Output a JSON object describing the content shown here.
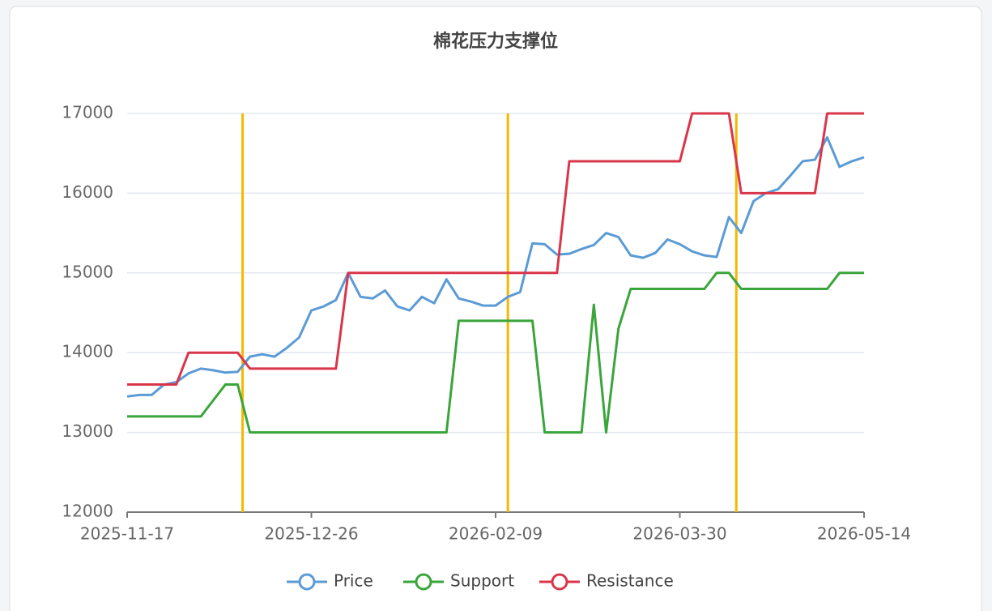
{
  "chart_data": {
    "type": "line",
    "title": "棉花压力支撑位",
    "categories": [
      "2025-11-17",
      null,
      null,
      null,
      null,
      null,
      null,
      null,
      null,
      null,
      null,
      null,
      null,
      null,
      null,
      "2025-12-26",
      null,
      null,
      null,
      null,
      null,
      null,
      null,
      null,
      null,
      null,
      null,
      null,
      null,
      null,
      "2026-02-09",
      null,
      null,
      null,
      null,
      null,
      null,
      null,
      null,
      null,
      null,
      null,
      null,
      null,
      null,
      "2026-03-30",
      null,
      null,
      null,
      null,
      null,
      null,
      null,
      null,
      null,
      null,
      null,
      null,
      null,
      null,
      "2026-05-14"
    ],
    "series": [
      {
        "name": "Price",
        "color": "#5b9bd5",
        "values": [
          13450,
          13470,
          13470,
          13600,
          13630,
          13740,
          13800,
          13780,
          13750,
          13760,
          13950,
          13980,
          13950,
          14060,
          14190,
          14530,
          14580,
          14660,
          15000,
          14700,
          14680,
          14780,
          14580,
          14530,
          14700,
          14620,
          14920,
          14680,
          14640,
          14590,
          14590,
          14700,
          14760,
          15370,
          15360,
          15230,
          15240,
          15300,
          15350,
          15500,
          15450,
          15220,
          15190,
          15250,
          15420,
          15360,
          15270,
          15220,
          15200,
          15700,
          15500,
          15900,
          16000,
          16050,
          16220,
          16400,
          16420,
          16700,
          16330,
          16400,
          16450
        ]
      },
      {
        "name": "Support",
        "color": "#3aa53a",
        "values": [
          13200,
          13200,
          13200,
          13200,
          13200,
          13200,
          13200,
          13400,
          13600,
          13600,
          13000,
          13000,
          13000,
          13000,
          13000,
          13000,
          13000,
          13000,
          13000,
          13000,
          13000,
          13000,
          13000,
          13000,
          13000,
          13000,
          13000,
          14400,
          14400,
          14400,
          14400,
          14400,
          14400,
          14400,
          13000,
          13000,
          13000,
          13000,
          14600,
          13000,
          14300,
          14800,
          14800,
          14800,
          14800,
          14800,
          14800,
          14800,
          15000,
          15000,
          14800,
          14800,
          14800,
          14800,
          14800,
          14800,
          14800,
          14800,
          15000,
          15000,
          15000
        ]
      },
      {
        "name": "Resistance",
        "color": "#d9364a",
        "values": [
          13600,
          13600,
          13600,
          13600,
          13600,
          14000,
          14000,
          14000,
          14000,
          14000,
          13800,
          13800,
          13800,
          13800,
          13800,
          13800,
          13800,
          13800,
          15000,
          15000,
          15000,
          15000,
          15000,
          15000,
          15000,
          15000,
          15000,
          15000,
          15000,
          15000,
          15000,
          15000,
          15000,
          15000,
          15000,
          15000,
          16400,
          16400,
          16400,
          16400,
          16400,
          16400,
          16400,
          16400,
          16400,
          16400,
          17000,
          17000,
          17000,
          17000,
          16000,
          16000,
          16000,
          16000,
          16000,
          16000,
          16000,
          17000,
          17000,
          17000,
          17000
        ]
      }
    ],
    "vlines": [
      9.4,
      31,
      49.6
    ],
    "vline_color": "#f5b800",
    "ylim": [
      12000,
      17000
    ],
    "yticks": [
      12000,
      13000,
      14000,
      15000,
      16000,
      17000
    ],
    "grid": true,
    "legend": "bottom"
  }
}
